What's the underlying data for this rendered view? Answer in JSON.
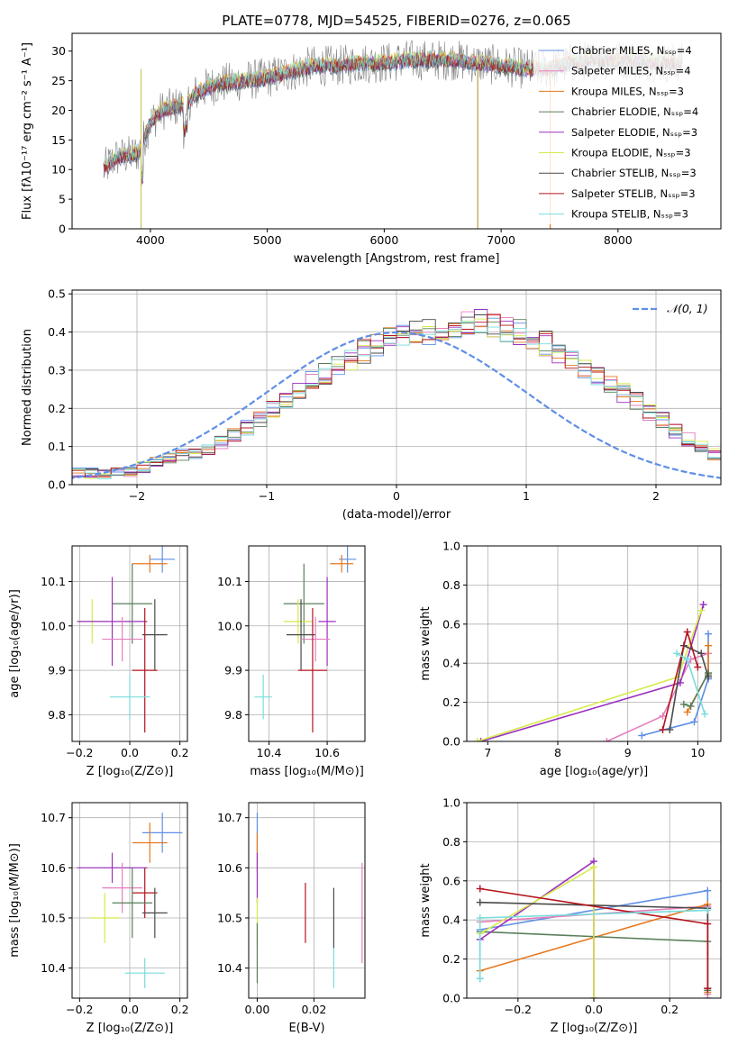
{
  "colors": {
    "chabrier_miles": "#5f8fe6",
    "salpeter_miles": "#e57fbf",
    "kroupa_miles": "#e6781e",
    "chabrier_elodie": "#5a7f5a",
    "salpeter_elodie": "#9b30c0",
    "kroupa_elodie": "#d6ea4a",
    "chabrier_stelib": "#4a4a4a",
    "salpeter_stelib": "#b4141e",
    "kroupa_stelib": "#7adcdc",
    "normal": "#5f8fe6"
  },
  "chart_data": [
    {
      "id": "spectrum",
      "type": "line",
      "title": "PLATE=0778, MJD=54525, FIBERID=0276, z=0.065",
      "xlabel": "wavelength [Angstrom, rest frame]",
      "ylabel": "Flux [fλ10⁻¹⁷ erg cm⁻² s⁻¹ A⁻¹]",
      "xlim": [
        3330,
        8880
      ],
      "ylim": [
        0,
        33
      ],
      "xticks": [
        4000,
        5000,
        6000,
        7000,
        8000
      ],
      "yticks": [
        0,
        5,
        10,
        15,
        20,
        25,
        30
      ],
      "legend_position": "upper right",
      "legend": [
        "Chabrier MILES, Nₛₛₚ=4",
        "Salpeter MILES, Nₛₛₚ=4",
        "Kroupa MILES, Nₛₛₚ=3",
        "Chabrier ELODIE, Nₛₛₚ=4",
        "Salpeter ELODIE, Nₛₛₚ=3",
        "Kroupa ELODIE, Nₛₛₚ=3",
        "Chabrier STELIB, Nₛₛₚ=3",
        "Salpeter STELIB, Nₛₛₚ=3",
        "Kroupa STELIB, Nₛₛₚ=3"
      ],
      "continuum_wavelength": [
        3600,
        3700,
        3850,
        3900,
        4000,
        4100,
        4200,
        4300,
        4400,
        4500,
        4600,
        4800,
        5000,
        5200,
        5400,
        5600,
        5800,
        6000,
        6200,
        6400,
        6600,
        6800,
        7000,
        7200,
        7400,
        7600,
        7800,
        8000,
        8200,
        8400,
        8550
      ],
      "continuum_flux": [
        10,
        12,
        12.5,
        13,
        18,
        20,
        20.5,
        21,
        23,
        24,
        24.5,
        25,
        25.5,
        26.5,
        27.5,
        27.5,
        28,
        28,
        28.5,
        28.5,
        28.5,
        28,
        27.5,
        27,
        27,
        28,
        28.5,
        28.5,
        28.5,
        28,
        28
      ]
    },
    {
      "id": "residuals",
      "type": "histogram",
      "xlabel": "(data-model)/error",
      "ylabel": "Normed distribution",
      "xlim": [
        -2.5,
        2.5
      ],
      "ylim": [
        0,
        0.51
      ],
      "xticks": [
        -2,
        -1,
        0,
        1,
        2
      ],
      "yticks": [
        0.0,
        0.1,
        0.2,
        0.3,
        0.4,
        0.5
      ],
      "legend_position": "upper right",
      "legend": [
        "𝒩(0, 1)"
      ],
      "bin_width": 0.1,
      "bins_left_edge": -2.5,
      "mean_density": [
        0.03,
        0.03,
        0.025,
        0.03,
        0.035,
        0.045,
        0.06,
        0.07,
        0.08,
        0.085,
        0.09,
        0.11,
        0.13,
        0.15,
        0.17,
        0.2,
        0.22,
        0.25,
        0.27,
        0.29,
        0.31,
        0.33,
        0.35,
        0.37,
        0.38,
        0.39,
        0.4,
        0.4,
        0.41,
        0.42,
        0.43,
        0.43,
        0.42,
        0.41,
        0.4,
        0.39,
        0.37,
        0.35,
        0.32,
        0.3,
        0.28,
        0.26,
        0.24,
        0.22,
        0.19,
        0.17,
        0.14,
        0.12,
        0.1,
        0.08,
        0.07
      ],
      "normal_curve": {
        "name": "𝒩(0, 1)",
        "mean": 0,
        "sigma": 1
      }
    },
    {
      "id": "age_vs_Z",
      "type": "errorbar",
      "xlabel": "Z [log₁₀(Z/Z⊙)]",
      "ylabel": "age  [log₁₀(age/yr)]",
      "xlim": [
        -0.23,
        0.23
      ],
      "ylim": [
        9.74,
        10.18
      ],
      "xticks": [
        -0.2,
        0.0,
        0.2
      ],
      "yticks": [
        9.8,
        9.9,
        10.0,
        10.1
      ],
      "points": [
        {
          "series": "chabrier_miles",
          "x": 0.13,
          "y": 10.15,
          "xerr": 0.05,
          "yerr": 0.03
        },
        {
          "series": "kroupa_miles",
          "x": 0.08,
          "y": 10.14,
          "xerr": 0.07,
          "yerr": 0.02
        },
        {
          "series": "chabrier_elodie",
          "x": 0.01,
          "y": 10.05,
          "xerr": 0.08,
          "yerr": 0.09
        },
        {
          "series": "kroupa_elodie",
          "x": -0.15,
          "y": 10.01,
          "xerr": 0.06,
          "yerr": 0.05
        },
        {
          "series": "salpeter_elodie",
          "x": -0.07,
          "y": 10.01,
          "xerr": 0.14,
          "yerr": 0.1
        },
        {
          "series": "chabrier_stelib",
          "x": 0.1,
          "y": 9.98,
          "xerr": 0.05,
          "yerr": 0.08
        },
        {
          "series": "salpeter_miles",
          "x": -0.03,
          "y": 9.97,
          "xerr": 0.08,
          "yerr": 0.05
        },
        {
          "series": "salpeter_stelib",
          "x": 0.06,
          "y": 9.9,
          "xerr": 0.05,
          "yerr": 0.14
        },
        {
          "series": "kroupa_stelib",
          "x": 0.0,
          "y": 9.84,
          "xerr": 0.08,
          "yerr": 0.05
        }
      ]
    },
    {
      "id": "age_vs_mass",
      "type": "errorbar",
      "xlabel": "mass [log₁₀(M/M⊙)]",
      "ylabel": "",
      "xlim": [
        10.33,
        10.73
      ],
      "ylim": [
        9.74,
        10.18
      ],
      "xticks": [
        10.4,
        10.6
      ],
      "yticks": [
        9.8,
        9.9,
        10.0,
        10.1
      ],
      "points": [
        {
          "series": "chabrier_miles",
          "x": 10.67,
          "y": 10.15,
          "xerr": 0.03,
          "yerr": 0.03
        },
        {
          "series": "kroupa_miles",
          "x": 10.65,
          "y": 10.14,
          "xerr": 0.04,
          "yerr": 0.02
        },
        {
          "series": "chabrier_elodie",
          "x": 10.52,
          "y": 10.05,
          "xerr": 0.07,
          "yerr": 0.09
        },
        {
          "series": "kroupa_elodie",
          "x": 10.5,
          "y": 10.01,
          "xerr": 0.05,
          "yerr": 0.05
        },
        {
          "series": "salpeter_elodie",
          "x": 10.6,
          "y": 10.01,
          "xerr": 0.03,
          "yerr": 0.1
        },
        {
          "series": "chabrier_stelib",
          "x": 10.51,
          "y": 9.98,
          "xerr": 0.05,
          "yerr": 0.08
        },
        {
          "series": "salpeter_miles",
          "x": 10.56,
          "y": 9.97,
          "xerr": 0.05,
          "yerr": 0.05
        },
        {
          "series": "salpeter_stelib",
          "x": 10.55,
          "y": 9.9,
          "xerr": 0.05,
          "yerr": 0.14
        },
        {
          "series": "kroupa_stelib",
          "x": 10.38,
          "y": 9.84,
          "xerr": 0.03,
          "yerr": 0.05
        }
      ]
    },
    {
      "id": "weight_vs_age",
      "type": "line",
      "xlabel": "age  [log₁₀(age/yr)]",
      "ylabel": "mass weight",
      "xlim": [
        6.7,
        10.33
      ],
      "ylim": [
        0,
        1.0
      ],
      "xticks": [
        7,
        8,
        9,
        10
      ],
      "yticks": [
        0.0,
        0.2,
        0.4,
        0.6,
        0.8,
        1.0
      ],
      "series": [
        {
          "series": "chabrier_miles",
          "x": [
            9.2,
            9.95,
            10.15,
            10.15
          ],
          "y": [
            0.03,
            0.1,
            0.32,
            0.55
          ]
        },
        {
          "series": "salpeter_miles",
          "x": [
            8.7,
            9.5,
            9.9,
            10.15
          ],
          "y": [
            0.0,
            0.13,
            0.42,
            0.45
          ]
        },
        {
          "series": "kroupa_miles",
          "x": [
            9.85,
            10.15,
            10.15
          ],
          "y": [
            0.15,
            0.35,
            0.49
          ]
        },
        {
          "series": "chabrier_elodie",
          "x": [
            9.8,
            9.9,
            10.15,
            10.15
          ],
          "y": [
            0.19,
            0.18,
            0.35,
            0.34
          ]
        },
        {
          "series": "salpeter_elodie",
          "x": [
            6.9,
            9.75,
            10.08
          ],
          "y": [
            0.0,
            0.3,
            0.7
          ]
        },
        {
          "series": "kroupa_elodie",
          "x": [
            6.85,
            9.72,
            10.05
          ],
          "y": [
            0.0,
            0.33,
            0.67
          ]
        },
        {
          "series": "chabrier_stelib",
          "x": [
            9.6,
            9.8,
            10.05,
            10.15
          ],
          "y": [
            0.06,
            0.49,
            0.45,
            0.33
          ]
        },
        {
          "series": "salpeter_stelib",
          "x": [
            9.5,
            9.85,
            10.0
          ],
          "y": [
            0.06,
            0.56,
            0.38
          ]
        },
        {
          "series": "kroupa_stelib",
          "x": [
            9.7,
            9.85,
            10.1
          ],
          "y": [
            0.45,
            0.42,
            0.14
          ]
        }
      ]
    },
    {
      "id": "mass_vs_Z",
      "type": "errorbar",
      "xlabel": "Z [log₁₀(Z/Z⊙)]",
      "ylabel": "mass [log₁₀(M/M⊙)]",
      "xlim": [
        -0.23,
        0.23
      ],
      "ylim": [
        10.34,
        10.73
      ],
      "xticks": [
        -0.2,
        0.0,
        0.2
      ],
      "yticks": [
        10.4,
        10.5,
        10.6,
        10.7
      ],
      "points": [
        {
          "series": "chabrier_miles",
          "x": 0.13,
          "y": 10.67,
          "xerr": 0.08,
          "yerr": 0.04
        },
        {
          "series": "kroupa_miles",
          "x": 0.08,
          "y": 10.65,
          "xerr": 0.07,
          "yerr": 0.04
        },
        {
          "series": "salpeter_elodie",
          "x": -0.07,
          "y": 10.6,
          "xerr": 0.14,
          "yerr": 0.03
        },
        {
          "series": "salpeter_miles",
          "x": -0.03,
          "y": 10.56,
          "xerr": 0.08,
          "yerr": 0.05
        },
        {
          "series": "salpeter_stelib",
          "x": 0.06,
          "y": 10.55,
          "xerr": 0.05,
          "yerr": 0.05
        },
        {
          "series": "chabrier_elodie",
          "x": 0.01,
          "y": 10.53,
          "xerr": 0.08,
          "yerr": 0.07
        },
        {
          "series": "chabrier_stelib",
          "x": 0.1,
          "y": 10.51,
          "xerr": 0.05,
          "yerr": 0.05
        },
        {
          "series": "kroupa_elodie",
          "x": -0.1,
          "y": 10.5,
          "xerr": 0.06,
          "yerr": 0.05
        },
        {
          "series": "kroupa_stelib",
          "x": 0.06,
          "y": 10.39,
          "xerr": 0.08,
          "yerr": 0.03
        }
      ]
    },
    {
      "id": "mass_vs_ebv",
      "type": "errorbar",
      "xlabel": "E(B-V)",
      "ylabel": "",
      "xlim": [
        -0.003,
        0.038
      ],
      "ylim": [
        10.34,
        10.73
      ],
      "xticks": [
        0.0,
        0.02
      ],
      "yticks": [
        10.4,
        10.5,
        10.6,
        10.7
      ],
      "points": [
        {
          "series": "chabrier_miles",
          "x": 0.0,
          "y": 10.67,
          "xerr": 0,
          "yerr": 0.04
        },
        {
          "series": "kroupa_miles",
          "x": 0.0,
          "y": 10.63,
          "xerr": 0,
          "yerr": 0.04
        },
        {
          "series": "salpeter_elodie",
          "x": 0.0,
          "y": 10.58,
          "xerr": 0,
          "yerr": 0.05
        },
        {
          "series": "kroupa_elodie",
          "x": 0.0,
          "y": 10.49,
          "xerr": 0,
          "yerr": 0.05
        },
        {
          "series": "chabrier_elodie",
          "x": 0.0,
          "y": 10.43,
          "xerr": 0,
          "yerr": 0.06
        },
        {
          "series": "salpeter_stelib",
          "x": 0.017,
          "y": 10.51,
          "xerr": 0,
          "yerr": 0.06
        },
        {
          "series": "chabrier_stelib",
          "x": 0.027,
          "y": 10.5,
          "xerr": 0,
          "yerr": 0.06
        },
        {
          "series": "kroupa_stelib",
          "x": 0.027,
          "y": 10.4,
          "xerr": 0,
          "yerr": 0.04
        },
        {
          "series": "salpeter_miles",
          "x": 0.037,
          "y": 10.51,
          "xerr": 0,
          "yerr": 0.1
        }
      ]
    },
    {
      "id": "weight_vs_Z",
      "type": "line",
      "xlabel": "Z [log₁₀(Z/Z⊙)]",
      "ylabel": "mass weight",
      "xlim": [
        -0.335,
        0.335
      ],
      "ylim": [
        0,
        1.0
      ],
      "xticks": [
        -0.2,
        0.0,
        0.2
      ],
      "yticks": [
        0.0,
        0.2,
        0.4,
        0.6,
        0.8,
        1.0
      ],
      "series": [
        {
          "series": "chabrier_miles",
          "x": [
            -0.3,
            -0.3,
            0.3,
            0.3
          ],
          "y": [
            0.1,
            0.35,
            0.55,
            0.0
          ]
        },
        {
          "series": "salpeter_miles",
          "x": [
            -0.3,
            0.3,
            0.3
          ],
          "y": [
            0.39,
            0.47,
            0.02
          ]
        },
        {
          "series": "kroupa_miles",
          "x": [
            -0.3,
            0.3,
            0.3
          ],
          "y": [
            0.14,
            0.48,
            0.03
          ]
        },
        {
          "series": "chabrier_elodie",
          "x": [
            -0.3,
            0.3,
            0.3
          ],
          "y": [
            0.34,
            0.29,
            0.04
          ]
        },
        {
          "series": "salpeter_elodie",
          "x": [
            -0.3,
            0.0,
            0.0
          ],
          "y": [
            0.3,
            0.7,
            0.0
          ]
        },
        {
          "series": "kroupa_elodie",
          "x": [
            -0.3,
            0.0,
            0.0
          ],
          "y": [
            0.33,
            0.67,
            0.0
          ]
        },
        {
          "series": "chabrier_stelib",
          "x": [
            -0.3,
            0.3,
            0.3
          ],
          "y": [
            0.49,
            0.46,
            0.05
          ]
        },
        {
          "series": "salpeter_stelib",
          "x": [
            -0.3,
            0.3,
            0.3
          ],
          "y": [
            0.56,
            0.38,
            0.05
          ]
        },
        {
          "series": "kroupa_stelib",
          "x": [
            -0.3,
            -0.3,
            0.3
          ],
          "y": [
            0.1,
            0.41,
            0.45
          ]
        }
      ]
    }
  ]
}
